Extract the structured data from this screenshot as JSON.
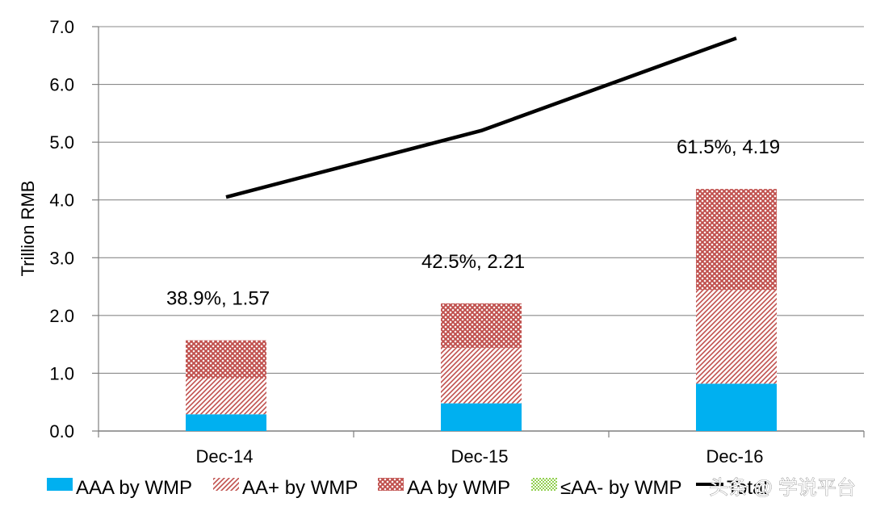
{
  "chart_data": {
    "type": "bar",
    "stacked": true,
    "ylabel": "Trillion RMB",
    "xlabel": "",
    "ylim": [
      0,
      7
    ],
    "yticks": [
      "0.0",
      "1.0",
      "2.0",
      "3.0",
      "4.0",
      "5.0",
      "6.0",
      "7.0"
    ],
    "yticks_values": [
      0,
      1,
      2,
      3,
      4,
      5,
      6,
      7
    ],
    "grid": true,
    "categories": [
      "Dec-14",
      "Dec-15",
      "Dec-16"
    ],
    "series": [
      {
        "name": "AAA by WMP",
        "values": [
          0.29,
          0.48,
          0.82
        ],
        "color": "#00b0f0",
        "pattern": "solid"
      },
      {
        "name": "AA+ by WMP",
        "values": [
          0.62,
          0.96,
          1.62
        ],
        "color": "#c0504d",
        "pattern": "diagonal"
      },
      {
        "name": "AA by WMP",
        "values": [
          0.66,
          0.77,
          1.75
        ],
        "color": "#c0504d",
        "pattern": "crosshatch"
      },
      {
        "name": "≤AA- by WMP",
        "values": [
          0,
          0,
          0
        ],
        "color": "#92d050",
        "pattern": "dots"
      }
    ],
    "line_series": {
      "name": "Total",
      "values": [
        4.05,
        5.2,
        6.8
      ],
      "color": "#000000"
    },
    "data_labels": [
      "38.9%, 1.57",
      "42.5%, 2.21",
      "61.5%, 4.19"
    ],
    "legend_position": "bottom",
    "legend_partial_text": "Total"
  },
  "watermark": "头条 @ 学说平台"
}
